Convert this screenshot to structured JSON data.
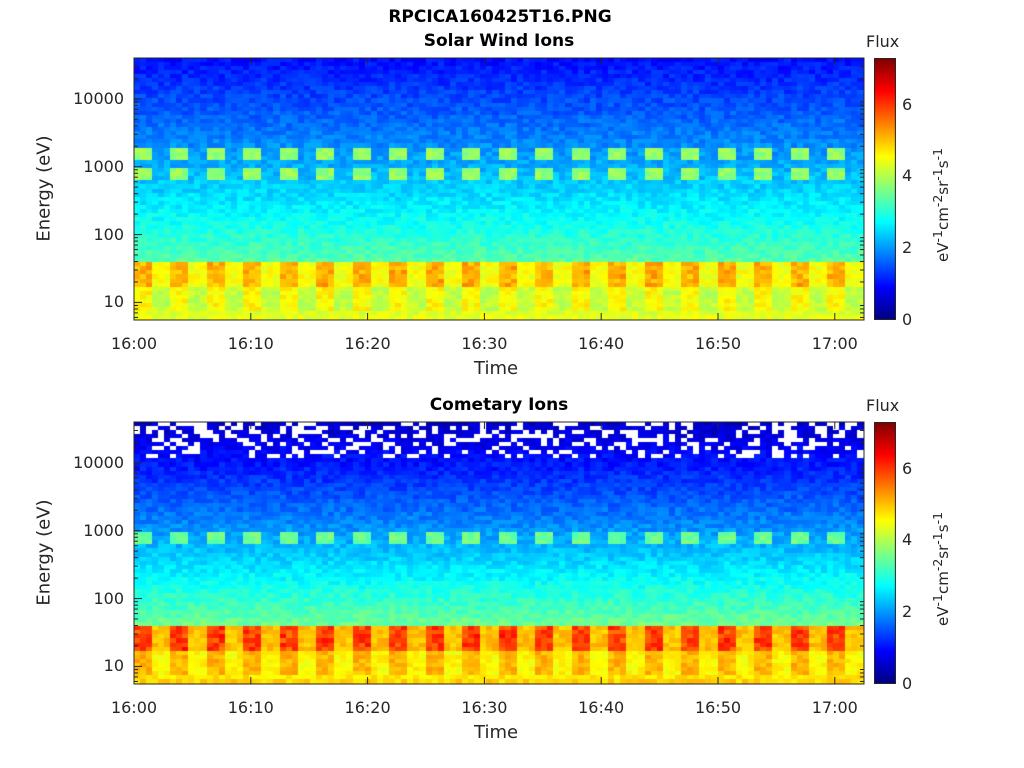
{
  "figure_title": "RPCICA160425T16.PNG",
  "chart_data": [
    {
      "type": "heatmap",
      "title": "Solar Wind Ions",
      "xlabel": "Time",
      "ylabel": "Energy (eV)",
      "x_ticks": [
        "16:00",
        "16:10",
        "16:20",
        "16:30",
        "16:40",
        "16:50",
        "17:00"
      ],
      "y_ticks": [
        "10",
        "100",
        "1000",
        "10000"
      ],
      "y_scale": "log",
      "x_range": [
        "16:00",
        "17:02"
      ],
      "y_range_ev": [
        5.5,
        40000
      ],
      "colorbar": {
        "label": "Flux",
        "unit_label": "eV⁻¹cm⁻²sr⁻¹s⁻¹",
        "range": [
          0,
          7.3
        ],
        "ticks": [
          0,
          2,
          4,
          6
        ],
        "colormap": "jet"
      },
      "features": {
        "background_high_energy_flux": 1.0,
        "low_energy_band_ev": [
          7,
          40
        ],
        "low_energy_band_flux": 4.5,
        "peak_low_energy_flux": 5.3,
        "mid_band_peaks_ev": [
          750,
          1500
        ],
        "mid_band_peak_flux": 3.8
      }
    },
    {
      "type": "heatmap",
      "title": "Cometary Ions",
      "xlabel": "Time",
      "ylabel": "Energy (eV)",
      "x_ticks": [
        "16:00",
        "16:10",
        "16:20",
        "16:30",
        "16:40",
        "16:50",
        "17:00"
      ],
      "y_ticks": [
        "10",
        "100",
        "1000",
        "10000"
      ],
      "y_scale": "log",
      "x_range": [
        "16:00",
        "17:02"
      ],
      "y_range_ev": [
        5.5,
        40000
      ],
      "colorbar": {
        "label": "Flux",
        "unit_label": "eV⁻¹cm⁻²sr⁻¹s⁻¹",
        "range": [
          0,
          7.3
        ],
        "ticks": [
          0,
          2,
          4,
          6
        ],
        "colormap": "jet"
      },
      "features": {
        "background_high_energy_flux": 0.5,
        "empty_bins_above_ev": 12000,
        "low_energy_band_ev": [
          7,
          40
        ],
        "low_energy_band_flux": 5.0,
        "peak_low_energy_flux": 6.2,
        "mid_band_peaks_ev": [
          750
        ],
        "mid_band_peak_flux": 3.5
      }
    }
  ]
}
